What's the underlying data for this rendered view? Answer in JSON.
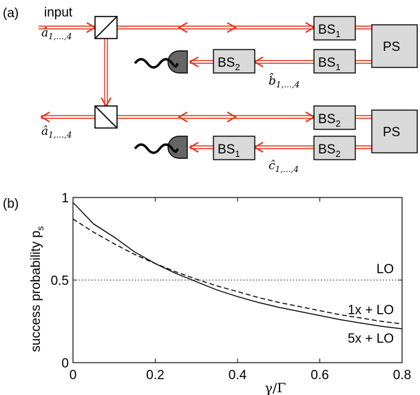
{
  "panel_a": {
    "label": "(a)",
    "input_label": "input",
    "mode_in": "â",
    "mode_in_sub": "1,...,4",
    "mode_out": "â",
    "mode_out_sub": "1,...,4",
    "mode_b": "b̂",
    "mode_b_sub": "1,...,4",
    "mode_c": "ĉ",
    "mode_c_sub": "1,...,4",
    "bs1": "BS",
    "bs1_sub": "1",
    "bs2": "BS",
    "bs2_sub": "2",
    "ps": "PS",
    "beam_color": "#e8301c",
    "box_fill": "#d9d9d9",
    "detector_fill": "#666666"
  },
  "panel_b": {
    "label": "(b)"
  },
  "chart_data": {
    "type": "line",
    "xlabel": "γ/Γ",
    "ylabel": "success probability p",
    "ylabel_sub": "s",
    "xlim": [
      0,
      0.8
    ],
    "ylim": [
      0,
      1
    ],
    "xticks": [
      "0",
      "0.2",
      "0.4",
      "0.6",
      "0.8"
    ],
    "yticks": [
      "0",
      "0.5",
      "1"
    ],
    "series": [
      {
        "name": "5x + LO",
        "style": "solid",
        "x": [
          0,
          0.05,
          0.1,
          0.15,
          0.2,
          0.25,
          0.3,
          0.35,
          0.4,
          0.45,
          0.5,
          0.55,
          0.6,
          0.65,
          0.7,
          0.75,
          0.8
        ],
        "y": [
          0.97,
          0.84,
          0.76,
          0.67,
          0.6,
          0.54,
          0.49,
          0.44,
          0.4,
          0.365,
          0.335,
          0.31,
          0.285,
          0.26,
          0.24,
          0.22,
          0.205
        ]
      },
      {
        "name": "1x + LO",
        "style": "dashed",
        "x": [
          0,
          0.05,
          0.1,
          0.15,
          0.2,
          0.25,
          0.3,
          0.35,
          0.4,
          0.45,
          0.5,
          0.55,
          0.6,
          0.65,
          0.7,
          0.75,
          0.8
        ],
        "y": [
          0.87,
          0.79,
          0.72,
          0.655,
          0.6,
          0.55,
          0.505,
          0.465,
          0.43,
          0.395,
          0.365,
          0.34,
          0.315,
          0.29,
          0.27,
          0.25,
          0.235
        ]
      },
      {
        "name": "LO",
        "style": "dotted",
        "x": [
          0,
          0.8
        ],
        "y": [
          0.5,
          0.5
        ]
      }
    ]
  }
}
